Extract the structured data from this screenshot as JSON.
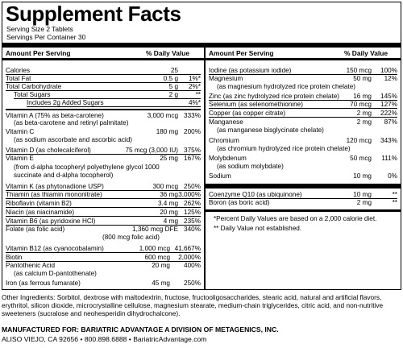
{
  "panel": {
    "title": "Supplement Facts",
    "serving_size": "Serving Size 2 Tablets",
    "servings_per_container": "Servings Per Container 30",
    "col_amount": "Amount Per Serving",
    "col_dv": "% Daily Value"
  },
  "left_rows": [
    {
      "name": "Calories",
      "amount": "25",
      "dv": ""
    },
    {
      "name": "Total Fat",
      "amount": "0.5 g",
      "dv": "1%*"
    },
    {
      "name": "Total Carbohydrate",
      "amount": "5 g",
      "dv": "2%*"
    },
    {
      "name": "Total Sugars",
      "amount": "2 g",
      "dv": "**"
    },
    {
      "name": "Includes 2g Added Sugars",
      "amount": "",
      "dv": "4%*"
    },
    {
      "name": "Vitamin A (75% as beta-carotene)",
      "amount": "3,000 mcg",
      "dv": "333%"
    },
    {
      "name": "Vitamin C",
      "amount": "180 mg",
      "dv": "200%"
    },
    {
      "name": "Vitamin D (as cholecalciferol)",
      "amount": "75 mcg (3,000 IU)",
      "dv": "375%"
    },
    {
      "name": "Vitamin E",
      "amount": "25 mg",
      "dv": "167%"
    },
    {
      "name": "Vitamin K (as phytonadione USP)",
      "amount": "300 mcg",
      "dv": "250%"
    },
    {
      "name": "Thiamin (as thiamin mononitrate)",
      "amount": "36 mg",
      "dv": "3,000%"
    },
    {
      "name": "Riboflavin (vitamin B2)",
      "amount": "3.4 mg",
      "dv": "262%"
    },
    {
      "name": "Niacin (as niacinamide)",
      "amount": "20 mg",
      "dv": "125%"
    },
    {
      "name": "Vitamin B6 (as pyridoxine HCl)",
      "amount": "4 mg",
      "dv": "235%"
    },
    {
      "name": "Folate (as folic acid)",
      "amount": "1,360 mcg DFE",
      "dv": "340%"
    },
    {
      "name": "Vitamin B12 (as cyanocobalamin)",
      "amount": "1,000 mcg",
      "dv": "41,667%"
    },
    {
      "name": "Biotin",
      "amount": "600 mcg",
      "dv": "2,000%"
    },
    {
      "name": "Pantothenic Acid",
      "amount": "20 mg",
      "dv": "400%"
    },
    {
      "name": "Iron (as ferrous fumarate)",
      "amount": "45 mg",
      "dv": "250%"
    }
  ],
  "left_subs": {
    "vitamin_a": "(as beta-carotene and retinyl palmitate)",
    "vitamin_c": "(as sodium ascorbate and ascorbic acid)",
    "vitamin_e_1": "(from d-alpha tocopheryl polyethylene glycol 1000",
    "vitamin_e_2": "succinate and d-alpha tocopherol)",
    "folate": "(800 mcg folic acid)",
    "pantothenic": "(as calcium D-pantothenate)"
  },
  "right_rows": [
    {
      "name": "Iodine (as potassium iodide)",
      "amount": "150 mcg",
      "dv": "100%"
    },
    {
      "name": "Magnesium",
      "amount": "50 mg",
      "dv": "12%"
    },
    {
      "name": "Zinc (as zinc hydrolyzed rice protein chelate)",
      "amount": "16 mg",
      "dv": "145%"
    },
    {
      "name": "Selenium (as selenomethionine)",
      "amount": "70 mcg",
      "dv": "127%"
    },
    {
      "name": "Copper (as copper citrate)",
      "amount": "2 mg",
      "dv": "222%"
    },
    {
      "name": "Manganese",
      "amount": "2 mg",
      "dv": "87%"
    },
    {
      "name": "Chromium",
      "amount": "120 mcg",
      "dv": "343%"
    },
    {
      "name": "Molybdenum",
      "amount": "50 mcg",
      "dv": "111%"
    },
    {
      "name": "Sodium",
      "amount": "10 mg",
      "dv": "0%"
    },
    {
      "name": "Coenzyme Q10 (as ubiquinone)",
      "amount": "10 mg",
      "dv": "**"
    },
    {
      "name": "Boron (as boric acid)",
      "amount": "2 mg",
      "dv": "**"
    }
  ],
  "right_subs": {
    "magnesium": "(as magnesium hydrolyzed rice protein chelate)",
    "manganese": "(as manganese bisglycinate chelate)",
    "chromium": "(as chromium hydrolyzed rice protein chelate)",
    "molybdenum": "(as sodium molybdate)"
  },
  "footnotes": {
    "percent": "*Percent Daily Values are based on a 2,000 calorie diet.",
    "not_established": "** Daily Value not established."
  },
  "other_ingredients": "Other Ingredients: Sorbitol, dextrose with maltodextrin, fructose, fructooligosaccharides, stearic acid, natural and artificial flavors, erythritol, silicon dioxide, microcrystalline cellulose, magnesium stearate, medium-chain triglycerides, citric acid, and non-nutritive sweeteners (sucralose and neohesperidin dihydrochalcone).",
  "manufacturer": {
    "line1": "MANUFACTURED FOR: BARIATRIC ADVANTAGE A DIVISION OF METAGENICS, INC.",
    "line2": "ALISO VIEJO, CA 92656 • 800.898.6888 • BariatricAdvantage.com"
  }
}
